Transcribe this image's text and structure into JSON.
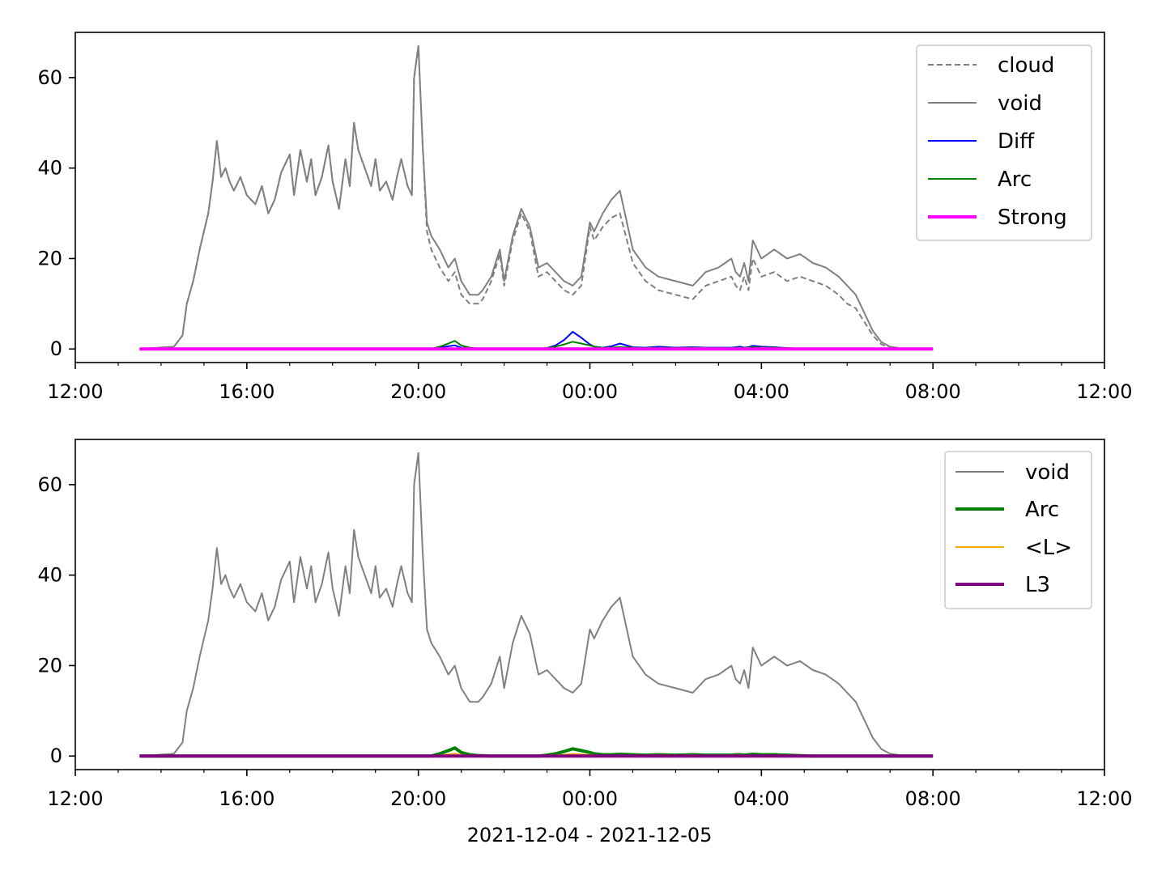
{
  "chart_data": [
    {
      "type": "line",
      "x_axis": {
        "kind": "time",
        "range": [
          "2021-12-04 12:00",
          "2021-12-05 12:00"
        ],
        "major_tick_labels": [
          "12:00",
          "16:00",
          "20:00",
          "00:00",
          "04:00",
          "08:00",
          "12:00"
        ],
        "label": ""
      },
      "y_axis": {
        "range": [
          -3,
          70
        ],
        "tick_labels": [
          "0",
          "20",
          "40",
          "60"
        ],
        "label": ""
      },
      "grid": false,
      "legend": "top-right",
      "series": [
        {
          "name": "cloud",
          "color": "#808080",
          "style": "dashed",
          "width": 2
        },
        {
          "name": "void",
          "color": "#808080",
          "style": "solid",
          "width": 2
        },
        {
          "name": "Diff",
          "color": "#0000ff",
          "style": "solid",
          "width": 2
        },
        {
          "name": "Arc",
          "color": "#008000",
          "style": "solid",
          "width": 2
        },
        {
          "name": "Strong",
          "color": "#ff00ff",
          "style": "solid",
          "width": 4
        }
      ]
    },
    {
      "type": "line",
      "x_axis": {
        "kind": "time",
        "range": [
          "2021-12-04 12:00",
          "2021-12-05 12:00"
        ],
        "major_tick_labels": [
          "12:00",
          "16:00",
          "20:00",
          "00:00",
          "04:00",
          "08:00",
          "12:00"
        ],
        "label": "2021-12-04 - 2021-12-05"
      },
      "y_axis": {
        "range": [
          -3,
          70
        ],
        "tick_labels": [
          "0",
          "20",
          "40",
          "60"
        ],
        "label": ""
      },
      "grid": false,
      "legend": "top-right",
      "series": [
        {
          "name": "void",
          "color": "#808080",
          "style": "solid",
          "width": 2
        },
        {
          "name": "Arc",
          "color": "#008000",
          "style": "solid",
          "width": 4
        },
        {
          "name": "<L>",
          "color": "#ffa500",
          "style": "solid",
          "width": 2
        },
        {
          "name": "L3",
          "color": "#800080",
          "style": "solid",
          "width": 4
        }
      ]
    }
  ],
  "profiles": {
    "hours_from_noon": [
      1.5,
      2.3,
      2.5,
      2.6,
      2.75,
      2.9,
      3.0,
      3.1,
      3.2,
      3.3,
      3.4,
      3.5,
      3.6,
      3.7,
      3.85,
      4.0,
      4.2,
      4.35,
      4.5,
      4.65,
      4.8,
      5.0,
      5.1,
      5.25,
      5.4,
      5.5,
      5.6,
      5.75,
      5.9,
      6.0,
      6.15,
      6.3,
      6.4,
      6.5,
      6.6,
      6.75,
      6.9,
      7.0,
      7.1,
      7.25,
      7.4,
      7.5,
      7.6,
      7.75,
      7.85,
      7.9,
      8.0,
      8.1,
      8.2,
      8.3,
      8.5,
      8.7,
      8.85,
      9.0,
      9.2,
      9.4,
      9.5,
      9.7,
      9.9,
      10.0,
      10.2,
      10.4,
      10.6,
      10.8,
      11.0,
      11.2,
      11.4,
      11.6,
      11.8,
      12.0,
      12.1,
      12.3,
      12.5,
      12.7,
      13.0,
      13.3,
      13.6,
      14.0,
      14.4,
      14.7,
      15.0,
      15.3,
      15.4,
      15.5,
      15.6,
      15.7,
      15.8,
      16.0,
      16.3,
      16.6,
      16.9,
      17.2,
      17.5,
      17.8,
      18.0,
      18.2,
      18.4,
      18.6,
      18.8,
      19.0,
      19.3,
      19.6,
      20.0
    ],
    "void": [
      0.0,
      0.5,
      3,
      10,
      15,
      22,
      26,
      30,
      37,
      46,
      38,
      40,
      37,
      35,
      38,
      34,
      32,
      36,
      30,
      33,
      39,
      43,
      34,
      44,
      37,
      42,
      34,
      38,
      45,
      37,
      31,
      42,
      36,
      50,
      44,
      40,
      36,
      42,
      35,
      37,
      33,
      38,
      42,
      36,
      34,
      60,
      67,
      45,
      28,
      25,
      22,
      18,
      20,
      15,
      12,
      12,
      13,
      16,
      22,
      15,
      25,
      31,
      27,
      18,
      19,
      17,
      15,
      14,
      16,
      28,
      26,
      30,
      33,
      35,
      22,
      18,
      16,
      15,
      14,
      17,
      18,
      20,
      17,
      16,
      19,
      15,
      24,
      20,
      22,
      20,
      21,
      19,
      18,
      16,
      14,
      12,
      8,
      4,
      1.5,
      0.5,
      0.1,
      0.0,
      0.0
    ],
    "cloud": [
      0.0,
      0.5,
      3,
      10,
      15,
      22,
      26,
      30,
      37,
      46,
      38,
      40,
      37,
      35,
      38,
      34,
      32,
      36,
      30,
      33,
      39,
      43,
      34,
      44,
      37,
      42,
      34,
      38,
      45,
      37,
      31,
      42,
      36,
      50,
      44,
      40,
      36,
      42,
      35,
      37,
      33,
      38,
      42,
      36,
      34,
      60,
      67,
      45,
      26,
      22,
      18,
      15,
      17,
      12,
      10,
      10,
      11,
      15,
      21,
      14,
      24,
      30,
      26,
      16,
      17,
      15,
      13,
      12,
      14,
      27,
      24,
      27,
      29,
      30,
      19,
      15,
      13,
      12,
      11,
      14,
      15,
      16,
      14,
      13,
      16,
      13,
      20,
      16,
      17,
      15,
      16,
      15,
      14,
      12,
      10,
      9,
      6,
      3,
      1.0,
      0.3,
      0.0,
      0.0,
      0.0
    ],
    "diff": [
      0.0,
      0.0,
      0.0,
      0.0,
      0.0,
      0.0,
      0.0,
      0.0,
      0.0,
      0.0,
      0.0,
      0.0,
      0.0,
      0.0,
      0.0,
      0.0,
      0.0,
      0.0,
      0.0,
      0.0,
      0.0,
      0.0,
      0.0,
      0.0,
      0.0,
      0.0,
      0.0,
      0.0,
      0.0,
      0.0,
      0.0,
      0.0,
      0.0,
      0.0,
      0.0,
      0.0,
      0.0,
      0.0,
      0.0,
      0.0,
      0.0,
      0.0,
      0.0,
      0.0,
      0.0,
      0.0,
      0.0,
      0.0,
      0.0,
      0.0,
      0.3,
      0.6,
      0.8,
      0.3,
      0.2,
      0.1,
      0.1,
      0.0,
      0.0,
      0.0,
      0.0,
      0.0,
      0.0,
      0.0,
      0.2,
      0.8,
      2.0,
      3.8,
      2.5,
      1.0,
      0.5,
      0.3,
      0.6,
      1.2,
      0.4,
      0.3,
      0.5,
      0.3,
      0.4,
      0.3,
      0.3,
      0.3,
      0.4,
      0.5,
      0.3,
      0.4,
      0.7,
      0.5,
      0.4,
      0.2,
      0.1,
      0.0,
      0.0,
      0.0,
      0.0,
      0.0,
      0.0,
      0.0,
      0.0,
      0.0,
      0.0,
      0.0,
      0.0
    ],
    "arc": [
      0.0,
      0.0,
      0.0,
      0.0,
      0.0,
      0.0,
      0.0,
      0.0,
      0.0,
      0.0,
      0.0,
      0.0,
      0.0,
      0.0,
      0.0,
      0.0,
      0.0,
      0.0,
      0.0,
      0.0,
      0.0,
      0.0,
      0.0,
      0.0,
      0.0,
      0.0,
      0.0,
      0.0,
      0.0,
      0.0,
      0.0,
      0.0,
      0.0,
      0.0,
      0.0,
      0.0,
      0.0,
      0.0,
      0.0,
      0.0,
      0.0,
      0.0,
      0.0,
      0.0,
      0.0,
      0.0,
      0.0,
      0.0,
      0.0,
      0.0,
      0.5,
      1.2,
      1.8,
      0.8,
      0.3,
      0.1,
      0.1,
      0.0,
      0.0,
      0.0,
      0.0,
      0.0,
      0.0,
      0.0,
      0.2,
      0.5,
      1.0,
      1.6,
      1.2,
      0.8,
      0.5,
      0.3,
      0.3,
      0.4,
      0.3,
      0.2,
      0.3,
      0.2,
      0.3,
      0.2,
      0.2,
      0.2,
      0.3,
      0.3,
      0.2,
      0.3,
      0.4,
      0.3,
      0.3,
      0.2,
      0.1,
      0.0,
      0.0,
      0.0,
      0.0,
      0.0,
      0.0,
      0.0,
      0.0,
      0.0,
      0.0,
      0.0,
      0.0
    ],
    "flat_line_hours": [
      1.5,
      20.0
    ]
  }
}
